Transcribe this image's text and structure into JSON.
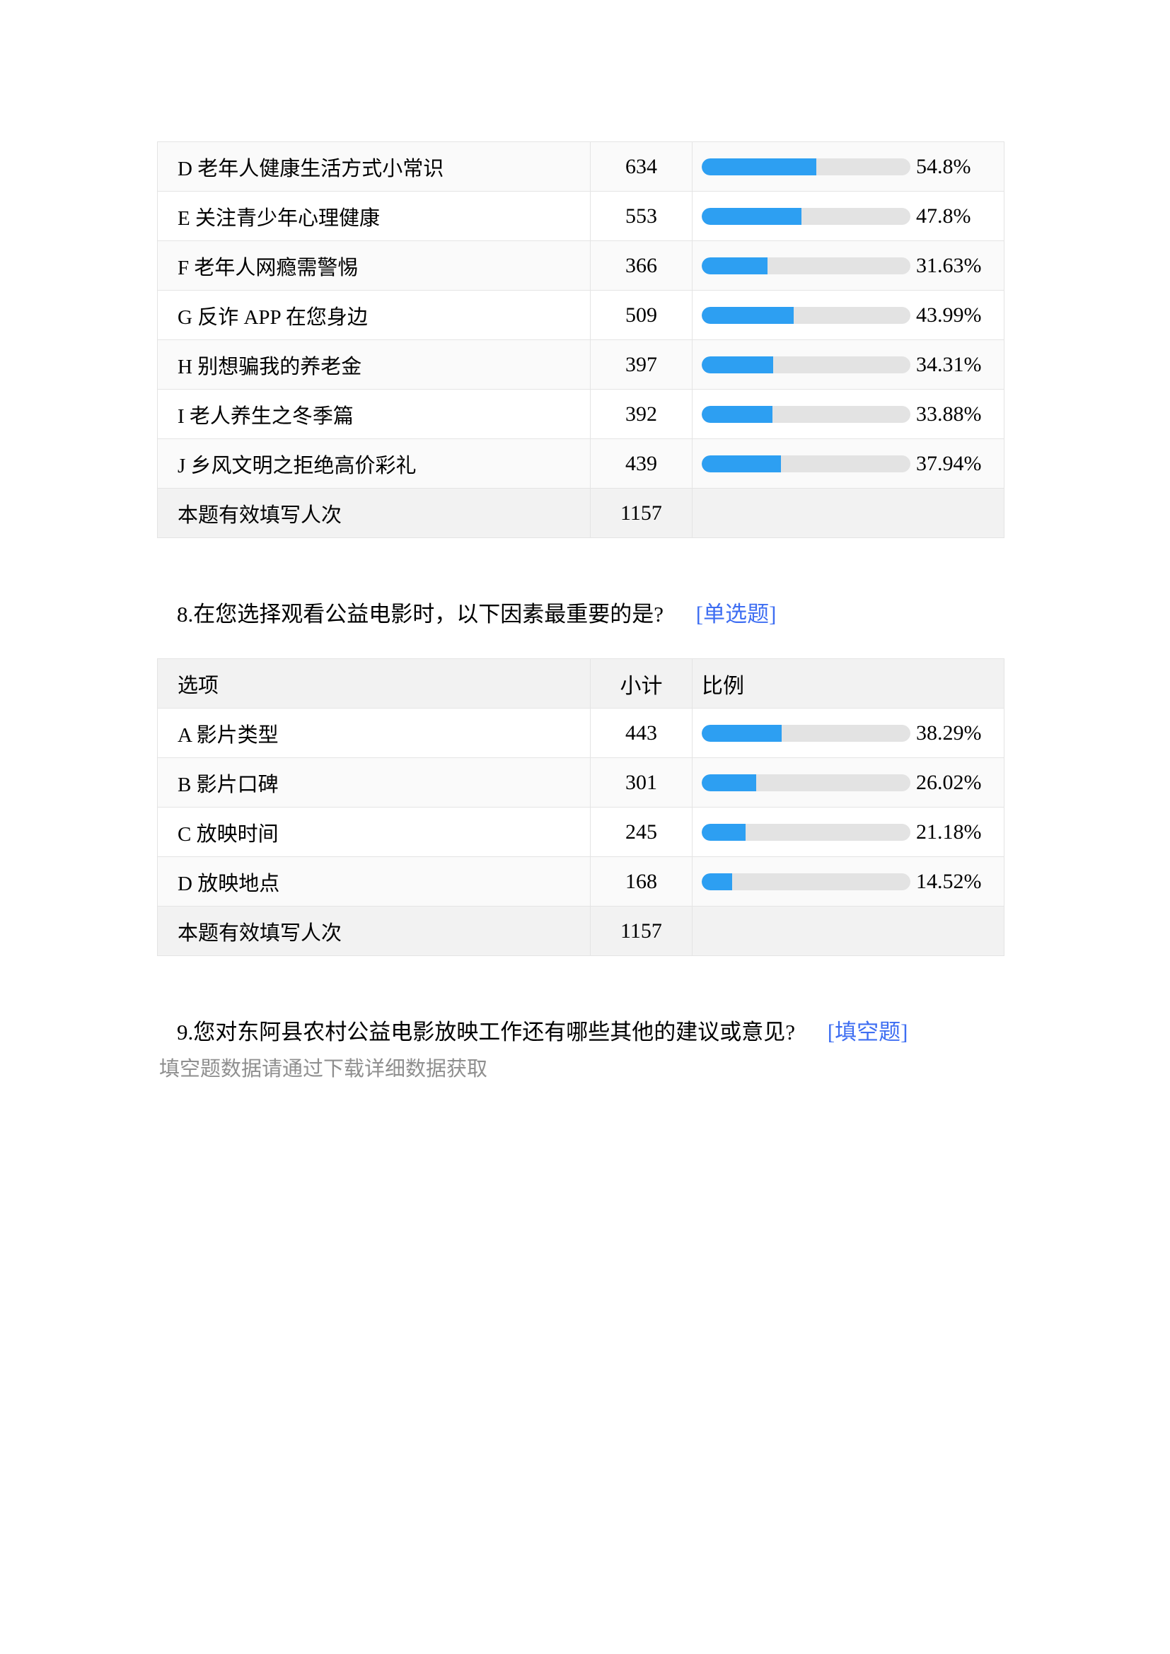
{
  "colors": {
    "bar_fill": "#2d9ff2",
    "bar_track": "#e3e3e3",
    "row_alt_bg": "#fafafa",
    "header_summary_bg": "#f2f2f2",
    "border": "#e4e4e4",
    "tag_blue": "#3e6ef2",
    "note_gray": "#8f8f8f"
  },
  "question7_table": {
    "alt_start": 0,
    "rows": [
      {
        "option": "D 老年人健康生活方式小常识",
        "count": "634",
        "percent": "54.8%",
        "fill_pct": 54.8
      },
      {
        "option": "E 关注青少年心理健康",
        "count": "553",
        "percent": "47.8%",
        "fill_pct": 47.8
      },
      {
        "option": "F 老年人网瘾需警惕",
        "count": "366",
        "percent": "31.63%",
        "fill_pct": 31.63
      },
      {
        "option": "G 反诈 APP 在您身边",
        "count": "509",
        "percent": "43.99%",
        "fill_pct": 43.99
      },
      {
        "option": "H 别想骗我的养老金",
        "count": "397",
        "percent": "34.31%",
        "fill_pct": 34.31
      },
      {
        "option": "I 老人养生之冬季篇",
        "count": "392",
        "percent": "33.88%",
        "fill_pct": 33.88
      },
      {
        "option": "J 乡风文明之拒绝高价彩礼",
        "count": "439",
        "percent": "37.94%",
        "fill_pct": 37.94
      }
    ],
    "summary": {
      "label": "本题有效填写人次",
      "count": "1157"
    }
  },
  "question8": {
    "title": "8.在您选择观看公益电影时，以下因素最重要的是?",
    "tag": "[单选题]",
    "table": {
      "alt_start": 1,
      "header": {
        "option": "选项",
        "count": "小计",
        "ratio": "比例"
      },
      "rows": [
        {
          "option": "A 影片类型",
          "count": "443",
          "percent": "38.29%",
          "fill_pct": 38.29
        },
        {
          "option": "B 影片口碑",
          "count": "301",
          "percent": "26.02%",
          "fill_pct": 26.02
        },
        {
          "option": "C 放映时间",
          "count": "245",
          "percent": "21.18%",
          "fill_pct": 21.18
        },
        {
          "option": "D 放映地点",
          "count": "168",
          "percent": "14.52%",
          "fill_pct": 14.52
        }
      ],
      "summary": {
        "label": "本题有效填写人次",
        "count": "1157"
      }
    }
  },
  "question9": {
    "title": "9.您对东阿县农村公益电影放映工作还有哪些其他的建议或意见?",
    "tag": "[填空题]",
    "note": "填空题数据请通过下载详细数据获取"
  },
  "chart_data": [
    {
      "type": "bar",
      "orientation": "horizontal",
      "categories": [
        "D 老年人健康生活方式小常识",
        "E 关注青少年心理健康",
        "F 老年人网瘾需警惕",
        "G 反诈 APP 在您身边",
        "H 别想骗我的养老金",
        "I 老人养生之冬季篇",
        "J 乡风文明之拒绝高价彩礼"
      ],
      "values": [
        634,
        553,
        366,
        509,
        397,
        392,
        439
      ],
      "percents": [
        54.8,
        47.8,
        31.63,
        43.99,
        34.31,
        33.88,
        37.94
      ],
      "valid_respondents_label": "本题有效填写人次",
      "valid_respondents": 1157,
      "xlim": [
        0,
        100
      ],
      "grid": false,
      "legend": "none"
    },
    {
      "type": "bar",
      "orientation": "horizontal",
      "title": "8.在您选择观看公益电影时，以下因素最重要的是?",
      "categories": [
        "A 影片类型",
        "B 影片口碑",
        "C 放映时间",
        "D 放映地点"
      ],
      "values": [
        443,
        301,
        245,
        168
      ],
      "percents": [
        38.29,
        26.02,
        21.18,
        14.52
      ],
      "valid_respondents_label": "本题有效填写人次",
      "valid_respondents": 1157,
      "xlim": [
        0,
        100
      ],
      "grid": false,
      "legend": "none"
    }
  ]
}
